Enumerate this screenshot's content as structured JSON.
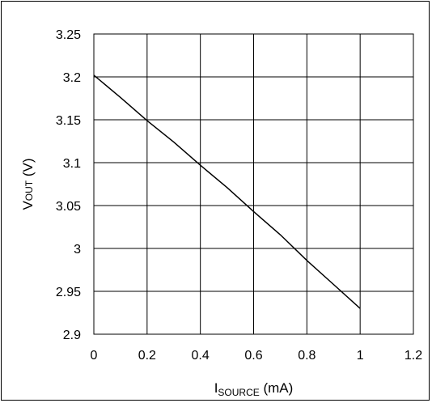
{
  "chart_data": {
    "type": "line",
    "xlabel": "I",
    "xlabel_sub": "SOURCE",
    "xlabel_unit": " (mA)",
    "ylabel": "V",
    "ylabel_sub": "OUT",
    "ylabel_unit": " (V)",
    "xlim": [
      0,
      1.2
    ],
    "ylim": [
      2.9,
      3.25
    ],
    "x_ticks": [
      "0",
      "0.2",
      "0.4",
      "0.6",
      "0.8",
      "1",
      "1.2"
    ],
    "y_ticks": [
      "2.9",
      "2.95",
      "3",
      "3.05",
      "3.1",
      "3.15",
      "3.2",
      "3.25"
    ],
    "grid": true,
    "line_color": "#000000",
    "series": [
      {
        "x": [
          0,
          0.1,
          0.2,
          0.3,
          0.4,
          0.5,
          0.6,
          0.7,
          0.8,
          0.9,
          1.0
        ],
        "y": [
          3.202,
          3.176,
          3.149,
          3.124,
          3.097,
          3.071,
          3.043,
          3.016,
          2.986,
          2.958,
          2.93
        ]
      }
    ]
  }
}
